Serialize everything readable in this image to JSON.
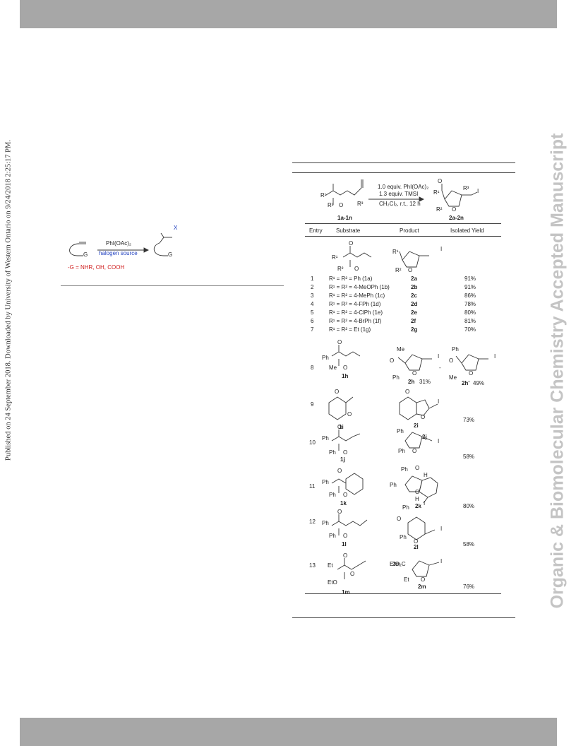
{
  "watermark_left": "Published on 24 September 2018. Downloaded by University of Western Ontario on 9/24/2018 2:25:17 PM.",
  "watermark_right": "Organic & Biomolecular Chemistry Accepted Manuscript",
  "scheme": {
    "reagent": "PhI(OAc)₂",
    "halogen": "halogen source",
    "g_def": "-G = NHR, OH, COOH",
    "x_label": "X",
    "g_label": "G"
  },
  "reaction": {
    "line1": "1.0 equiv. PhI(OAc)₂",
    "line2": "1.3 equiv. TMSI",
    "line3": "CH₂Cl₂, r.t., 12 h",
    "sm_label": "1a-1n",
    "prod_label": "2a-2n"
  },
  "table": {
    "headers": [
      "Entry",
      "Substrate",
      "Product",
      "Isolated Yield"
    ],
    "group_rows": [
      {
        "entry": "1",
        "substrate": "R¹ = R² = Ph (1a)",
        "product": "2a",
        "yield": "91%"
      },
      {
        "entry": "2",
        "substrate": "R¹ = R² = 4-MeOPh (1b)",
        "product": "2b",
        "yield": "91%"
      },
      {
        "entry": "3",
        "substrate": "R¹ = R² = 4-MePh (1c)",
        "product": "2c",
        "yield": "86%"
      },
      {
        "entry": "4",
        "substrate": "R¹ = R² = 4-FPh (1d)",
        "product": "2d",
        "yield": "78%"
      },
      {
        "entry": "5",
        "substrate": "R¹ = R² = 4-ClPh (1e)",
        "product": "2e",
        "yield": "80%"
      },
      {
        "entry": "6",
        "substrate": "R¹ = R² = 4-BrPh (1f)",
        "product": "2f",
        "yield": "81%"
      },
      {
        "entry": "7",
        "substrate": "R¹ = R² = Et (1g)",
        "product": "2g",
        "yield": "70%"
      }
    ],
    "entry8": {
      "entry": "8",
      "sm": "1h",
      "p1": "2h",
      "p1_yield": "31%",
      "p2": "2h'",
      "p2_yield": "49%"
    },
    "entry9": {
      "entry": "9",
      "sm": "1i",
      "prod": "2i",
      "yield": "73%"
    },
    "entry10": {
      "entry": "10",
      "sm": "1j",
      "prod": "2j",
      "yield": "58%"
    },
    "entry11": {
      "entry": "11",
      "sm": "1k",
      "prod": "2k",
      "yield": "80%"
    },
    "entry12": {
      "entry": "12",
      "sm": "1l",
      "prod": "2l",
      "yield": "58%"
    },
    "entry13": {
      "entry": "13",
      "sm": "1m",
      "prod": "2m",
      "yield": "76%"
    }
  },
  "atoms": {
    "r1": "R¹",
    "r2": "R²",
    "r3": "R³",
    "o": "O",
    "i": "I",
    "ph": "Ph",
    "me": "Me",
    "et": "Et",
    "eto": "EtO",
    "eto2c": "EtO₂C",
    "h": "H",
    "dash": "-"
  }
}
